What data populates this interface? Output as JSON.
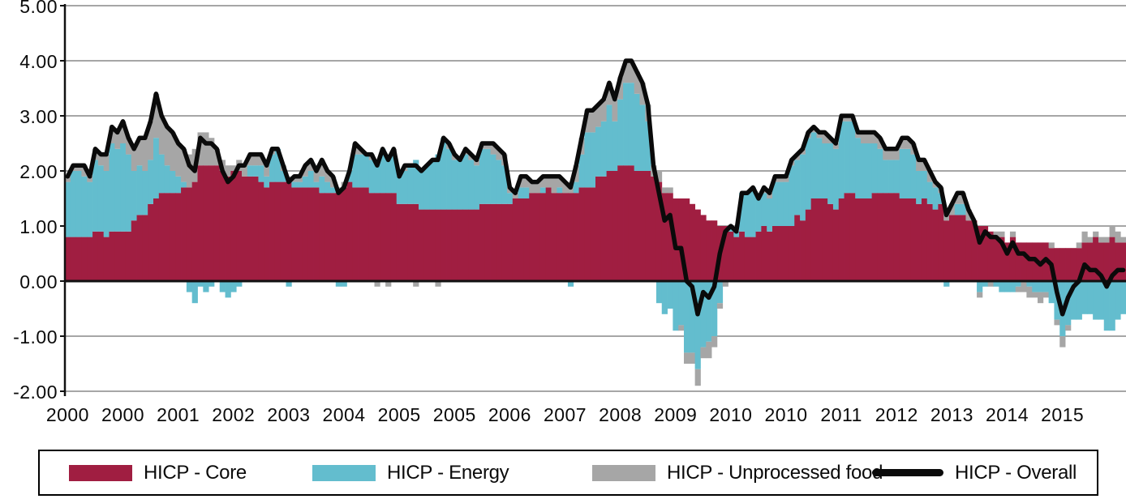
{
  "colors": {
    "core": "#A01E41",
    "energy": "#63BDCE",
    "unprocessed_food": "#A6A6A6",
    "overall_line": "#0A0A0A",
    "gridline": "#A6A6A6",
    "axis": "#111111",
    "background": "#FFFFFF"
  },
  "legend": {
    "items": [
      {
        "label": "HICP - Core",
        "swatch": "rect",
        "color": "#A01E41"
      },
      {
        "label": "HICP - Energy",
        "swatch": "rect",
        "color": "#63BDCE"
      },
      {
        "label": "HICP - Unprocessed food",
        "swatch": "rect",
        "color": "#A6A6A6"
      },
      {
        "label": "HICP - Overall",
        "swatch": "line",
        "color": "#0A0A0A"
      }
    ]
  },
  "chart_data": {
    "type": "bar",
    "subtype": "stacked-bar-with-line",
    "title": "",
    "xlabel": "",
    "ylabel": "",
    "frequency": "monthly",
    "x_start": "2000-01",
    "x_end": "2015-12",
    "n_points": 192,
    "ylim": [
      -2,
      5
    ],
    "y_ticks": [
      5,
      4,
      3,
      2,
      1,
      0,
      -1,
      -2
    ],
    "y_tick_labels": [
      "5.00",
      "4.00",
      "3.00",
      "2.00",
      "1.00",
      "0.00",
      "-1.00",
      "-2.00"
    ],
    "x_tick_labels": [
      "2000",
      "2000",
      "2001",
      "2002",
      "2003",
      "2004",
      "2005",
      "2005",
      "2006",
      "2007",
      "2008",
      "2009",
      "2010",
      "2010",
      "2011",
      "2012",
      "2013",
      "2014",
      "2015"
    ],
    "x_tick_month_indices": [
      0,
      10,
      20,
      30,
      40,
      50,
      60,
      70,
      80,
      90,
      100,
      110,
      120,
      130,
      140,
      150,
      160,
      170,
      180
    ],
    "grid": true,
    "legend_position": "bottom",
    "series": [
      {
        "name": "HICP - Core",
        "type": "bar",
        "color": "#A01E41",
        "values": [
          0.8,
          0.8,
          0.8,
          0.8,
          0.8,
          0.9,
          0.9,
          0.8,
          0.9,
          0.9,
          0.9,
          0.9,
          1.1,
          1.2,
          1.2,
          1.4,
          1.5,
          1.6,
          1.6,
          1.6,
          1.6,
          1.7,
          1.7,
          1.8,
          2.1,
          2.1,
          2.1,
          2.1,
          2.0,
          1.9,
          2.0,
          2.0,
          1.9,
          1.9,
          1.9,
          1.8,
          1.7,
          1.8,
          1.8,
          1.8,
          1.8,
          1.7,
          1.7,
          1.7,
          1.7,
          1.7,
          1.6,
          1.6,
          1.6,
          1.6,
          1.7,
          1.8,
          1.7,
          1.7,
          1.7,
          1.6,
          1.6,
          1.6,
          1.6,
          1.6,
          1.4,
          1.4,
          1.4,
          1.4,
          1.3,
          1.3,
          1.3,
          1.3,
          1.3,
          1.3,
          1.3,
          1.3,
          1.3,
          1.3,
          1.3,
          1.4,
          1.4,
          1.4,
          1.4,
          1.4,
          1.4,
          1.5,
          1.5,
          1.5,
          1.6,
          1.6,
          1.6,
          1.7,
          1.6,
          1.6,
          1.6,
          1.6,
          1.6,
          1.7,
          1.7,
          1.7,
          1.9,
          1.9,
          2.0,
          2.0,
          2.1,
          2.1,
          2.1,
          2.0,
          2.0,
          2.0,
          1.9,
          1.8,
          1.6,
          1.6,
          1.5,
          1.5,
          1.5,
          1.4,
          1.3,
          1.2,
          1.1,
          1.1,
          1.0,
          1.0,
          0.9,
          0.8,
          0.9,
          0.8,
          0.8,
          0.9,
          1.0,
          0.9,
          1.0,
          1.0,
          1.0,
          1.0,
          1.2,
          1.1,
          1.3,
          1.5,
          1.5,
          1.5,
          1.4,
          1.3,
          1.5,
          1.6,
          1.6,
          1.5,
          1.5,
          1.5,
          1.6,
          1.6,
          1.6,
          1.6,
          1.6,
          1.5,
          1.5,
          1.5,
          1.4,
          1.5,
          1.4,
          1.3,
          1.4,
          1.1,
          1.2,
          1.2,
          1.2,
          1.1,
          1.1,
          1.0,
          1.0,
          0.9,
          0.8,
          0.8,
          0.7,
          0.8,
          0.7,
          0.7,
          0.7,
          0.7,
          0.7,
          0.7,
          0.6,
          0.6,
          0.6,
          0.6,
          0.6,
          0.6,
          0.7,
          0.7,
          0.8,
          0.7,
          0.7,
          0.8,
          0.7,
          0.7
        ]
      },
      {
        "name": "HICP - Energy",
        "type": "bar",
        "color": "#63BDCE",
        "values": [
          1.0,
          1.2,
          1.2,
          1.1,
          1.0,
          1.3,
          1.2,
          1.2,
          1.6,
          1.5,
          1.6,
          1.4,
          0.9,
          0.9,
          0.8,
          0.8,
          1.1,
          0.7,
          0.5,
          0.4,
          0.3,
          0.1,
          -0.2,
          -0.4,
          -0.1,
          -0.2,
          -0.1,
          0.0,
          -0.2,
          -0.3,
          -0.2,
          -0.1,
          0.0,
          0.2,
          0.2,
          0.3,
          0.2,
          0.5,
          0.6,
          0.2,
          -0.1,
          0.1,
          0.1,
          0.2,
          0.3,
          0.1,
          0.3,
          0.2,
          0.1,
          -0.1,
          -0.1,
          0.2,
          0.6,
          0.6,
          0.6,
          0.6,
          0.6,
          0.8,
          0.7,
          0.7,
          0.5,
          0.6,
          0.7,
          0.8,
          0.7,
          0.8,
          0.9,
          1.0,
          1.3,
          1.1,
          0.9,
          0.9,
          1.0,
          0.9,
          0.8,
          1.0,
          1.0,
          0.9,
          0.8,
          0.7,
          0.2,
          0.0,
          0.2,
          0.2,
          0.0,
          0.0,
          0.1,
          0.0,
          0.0,
          0.1,
          0.0,
          -0.1,
          0.2,
          0.6,
          1.0,
          1.0,
          0.9,
          1.0,
          1.2,
          0.9,
          1.2,
          1.5,
          1.5,
          1.4,
          1.2,
          0.9,
          0.0,
          -0.4,
          -0.6,
          -0.5,
          -0.9,
          -0.8,
          -1.3,
          -1.3,
          -1.6,
          -1.2,
          -1.1,
          -1.0,
          -0.4,
          0.0,
          0.1,
          0.1,
          0.7,
          0.8,
          0.9,
          0.6,
          0.6,
          0.6,
          0.8,
          0.8,
          0.8,
          1.1,
          1.0,
          1.2,
          1.3,
          1.2,
          1.1,
          1.0,
          1.1,
          1.1,
          1.4,
          1.3,
          1.3,
          1.1,
          1.0,
          1.0,
          0.9,
          0.8,
          0.6,
          0.6,
          0.6,
          0.9,
          0.9,
          0.8,
          0.6,
          0.5,
          0.4,
          0.4,
          0.2,
          -0.1,
          0.0,
          0.2,
          0.2,
          0.0,
          0.0,
          -0.2,
          -0.1,
          0.0,
          -0.1,
          -0.2,
          -0.2,
          -0.2,
          -0.1,
          0.0,
          -0.1,
          -0.2,
          -0.2,
          -0.2,
          -0.4,
          -0.7,
          -1.0,
          -0.8,
          -0.7,
          -0.7,
          -0.6,
          -0.6,
          -0.7,
          -0.7,
          -0.9,
          -0.9,
          -0.7,
          -0.6
        ]
      },
      {
        "name": "HICP - Unprocessed food",
        "type": "bar",
        "color": "#A6A6A6",
        "values": [
          0.1,
          0.1,
          0.1,
          0.2,
          0.1,
          0.2,
          0.2,
          0.3,
          0.3,
          0.3,
          0.4,
          0.3,
          0.4,
          0.5,
          0.6,
          0.7,
          0.8,
          0.7,
          0.7,
          0.7,
          0.6,
          0.6,
          0.6,
          0.6,
          0.6,
          0.6,
          0.5,
          0.3,
          0.2,
          0.2,
          0.1,
          0.2,
          0.2,
          0.2,
          0.2,
          0.2,
          0.2,
          0.1,
          0.0,
          0.1,
          0.1,
          0.1,
          0.1,
          0.2,
          0.2,
          0.2,
          0.3,
          0.2,
          0.2,
          0.1,
          0.1,
          0.0,
          0.2,
          0.1,
          0.0,
          0.1,
          -0.1,
          0.0,
          -0.1,
          0.1,
          0.0,
          0.1,
          0.0,
          -0.1,
          0.0,
          0.0,
          0.0,
          -0.1,
          0.0,
          0.1,
          0.1,
          0.0,
          0.1,
          0.1,
          0.1,
          0.1,
          0.1,
          0.2,
          0.2,
          0.2,
          0.1,
          0.1,
          0.2,
          0.2,
          0.2,
          0.2,
          0.2,
          0.2,
          0.3,
          0.2,
          0.2,
          0.2,
          0.3,
          0.3,
          0.4,
          0.4,
          0.4,
          0.4,
          0.4,
          0.4,
          0.4,
          0.4,
          0.4,
          0.4,
          0.4,
          0.3,
          0.2,
          0.2,
          0.1,
          0.1,
          0.0,
          -0.1,
          -0.2,
          -0.2,
          -0.3,
          -0.2,
          -0.3,
          -0.2,
          -0.1,
          -0.1,
          0.0,
          0.0,
          0.0,
          0.0,
          0.0,
          0.0,
          0.1,
          0.1,
          0.1,
          0.1,
          0.1,
          0.1,
          0.1,
          0.1,
          0.1,
          0.1,
          0.1,
          0.2,
          0.1,
          0.1,
          0.1,
          0.1,
          0.1,
          0.1,
          0.2,
          0.2,
          0.2,
          0.2,
          0.2,
          0.2,
          0.2,
          0.2,
          0.2,
          0.2,
          0.2,
          0.2,
          0.2,
          0.1,
          0.1,
          0.2,
          0.2,
          0.2,
          0.2,
          0.2,
          0.0,
          -0.1,
          0.0,
          -0.1,
          0.1,
          0.1,
          0.0,
          0.1,
          -0.1,
          -0.2,
          -0.2,
          -0.1,
          -0.2,
          -0.1,
          0.1,
          -0.1,
          -0.2,
          -0.1,
          0.0,
          0.1,
          0.2,
          0.1,
          0.1,
          0.1,
          0.1,
          0.2,
          0.2,
          0.1
        ]
      },
      {
        "name": "HICP - Overall",
        "type": "line",
        "color": "#0A0A0A",
        "values": [
          1.9,
          2.1,
          2.1,
          2.1,
          1.9,
          2.4,
          2.3,
          2.3,
          2.8,
          2.7,
          2.9,
          2.6,
          2.4,
          2.6,
          2.6,
          2.9,
          3.4,
          3.0,
          2.8,
          2.7,
          2.5,
          2.4,
          2.1,
          2.0,
          2.6,
          2.5,
          2.5,
          2.4,
          2.0,
          1.8,
          1.9,
          2.1,
          2.1,
          2.3,
          2.3,
          2.3,
          2.1,
          2.4,
          2.4,
          2.1,
          1.8,
          1.9,
          1.9,
          2.1,
          2.2,
          2.0,
          2.2,
          2.0,
          1.9,
          1.6,
          1.7,
          2.0,
          2.5,
          2.4,
          2.3,
          2.3,
          2.1,
          2.4,
          2.2,
          2.4,
          1.9,
          2.1,
          2.1,
          2.1,
          2.0,
          2.1,
          2.2,
          2.2,
          2.6,
          2.5,
          2.3,
          2.2,
          2.4,
          2.3,
          2.2,
          2.5,
          2.5,
          2.5,
          2.4,
          2.3,
          1.7,
          1.6,
          1.9,
          1.9,
          1.8,
          1.8,
          1.9,
          1.9,
          1.9,
          1.9,
          1.8,
          1.7,
          2.1,
          2.6,
          3.1,
          3.1,
          3.2,
          3.3,
          3.6,
          3.3,
          3.7,
          4.0,
          4.0,
          3.8,
          3.6,
          3.2,
          2.1,
          1.6,
          1.1,
          1.2,
          0.6,
          0.6,
          0.0,
          -0.1,
          -0.6,
          -0.2,
          -0.3,
          -0.1,
          0.5,
          0.9,
          1.0,
          0.9,
          1.6,
          1.6,
          1.7,
          1.5,
          1.7,
          1.6,
          1.9,
          1.9,
          1.9,
          2.2,
          2.3,
          2.4,
          2.7,
          2.8,
          2.7,
          2.7,
          2.6,
          2.5,
          3.0,
          3.0,
          3.0,
          2.7,
          2.7,
          2.7,
          2.7,
          2.6,
          2.4,
          2.4,
          2.4,
          2.6,
          2.6,
          2.5,
          2.2,
          2.2,
          2.0,
          1.8,
          1.7,
          1.2,
          1.4,
          1.6,
          1.6,
          1.3,
          1.1,
          0.7,
          0.9,
          0.8,
          0.8,
          0.7,
          0.5,
          0.7,
          0.5,
          0.5,
          0.4,
          0.4,
          0.3,
          0.4,
          0.3,
          -0.2,
          -0.6,
          -0.3,
          -0.1,
          0.0,
          0.3,
          0.2,
          0.2,
          0.1,
          -0.1,
          0.1,
          0.2,
          0.2
        ]
      }
    ]
  }
}
